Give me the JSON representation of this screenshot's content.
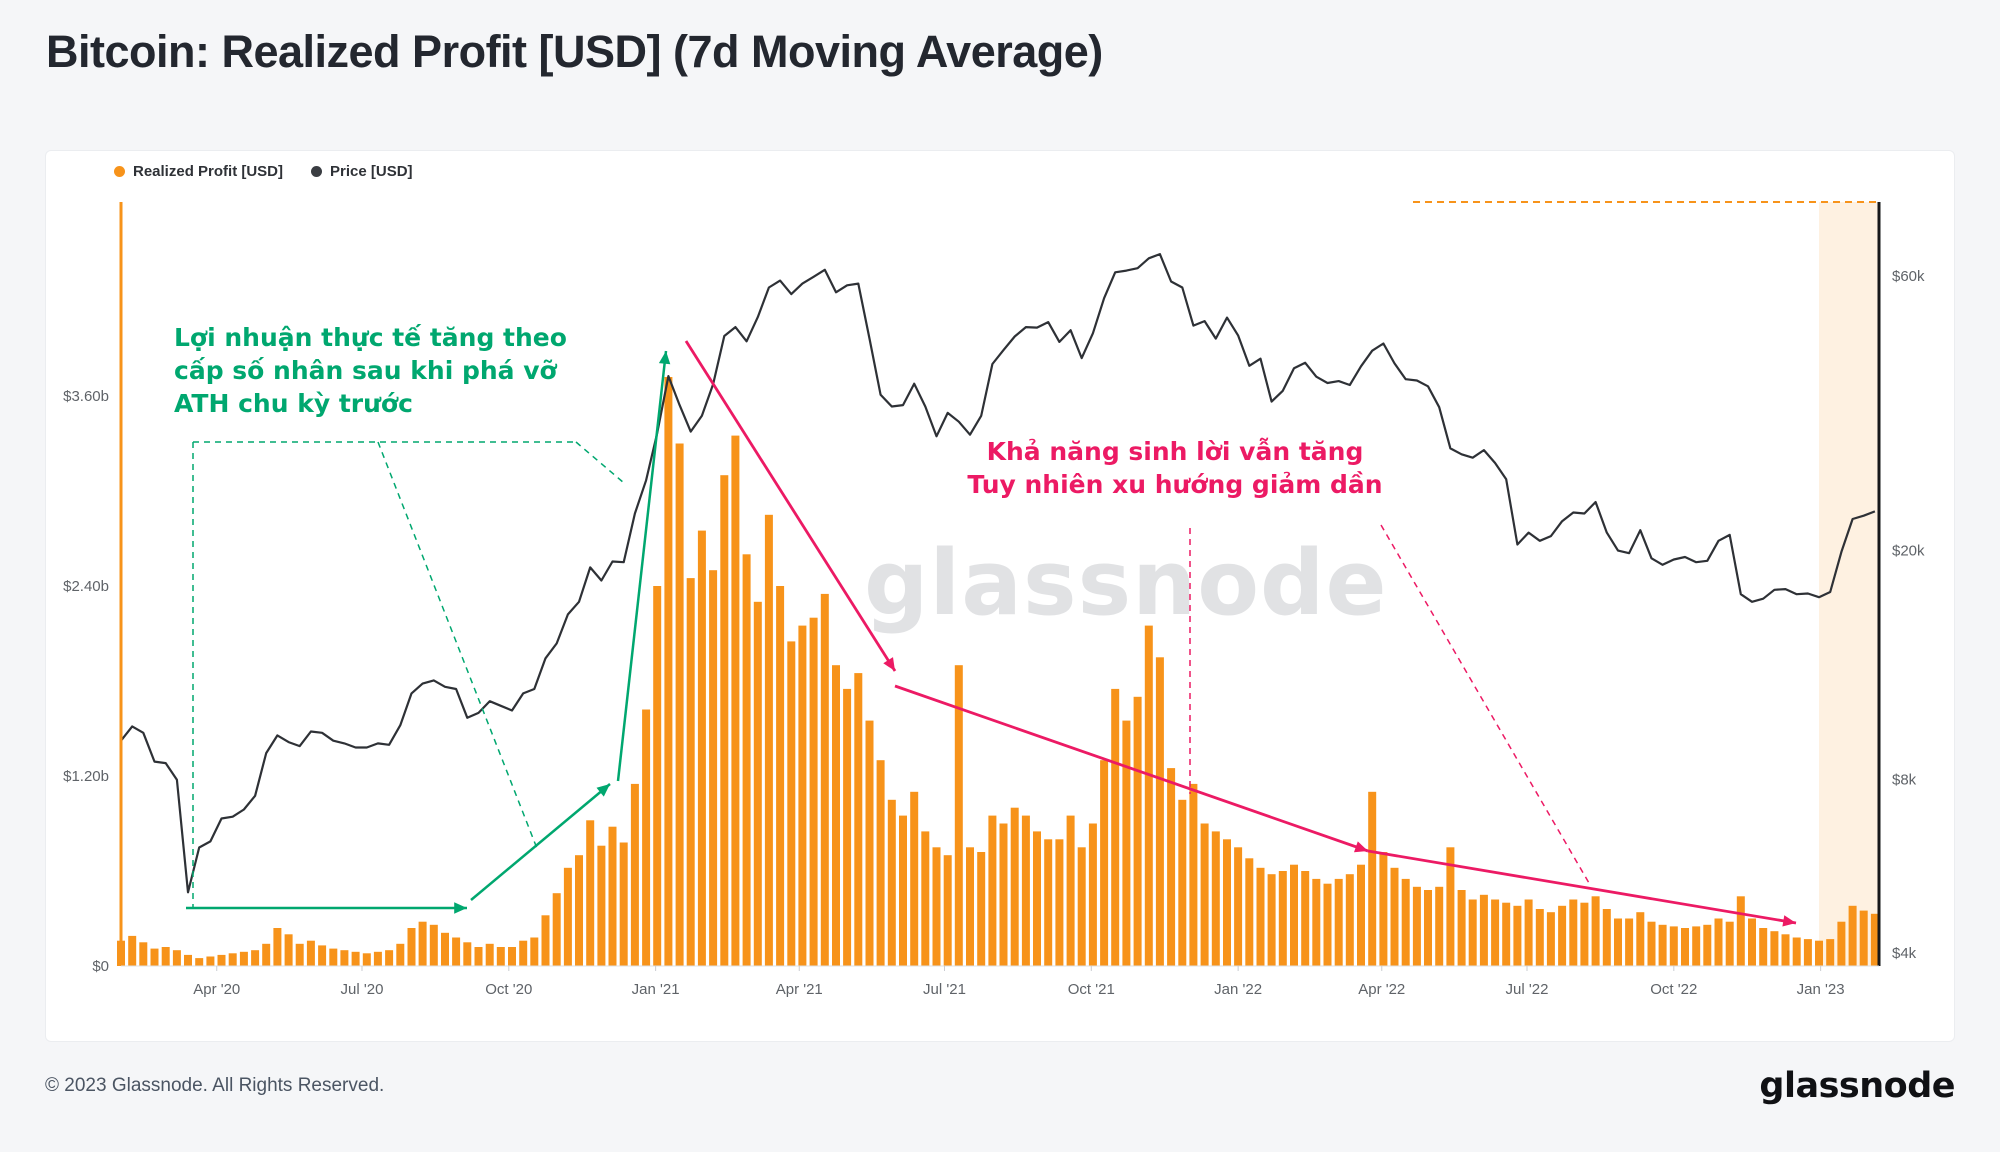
{
  "page": {
    "title": "Bitcoin: Realized Profit [USD] (7d Moving Average)",
    "footer_left": "© 2023 Glassnode. All Rights Reserved.",
    "footer_logo": "glassnode",
    "watermark": "glassnode"
  },
  "legend": [
    {
      "label": "Realized Profit [USD]",
      "color": "#f7931a"
    },
    {
      "label": "Price [USD]",
      "color": "#3a3d42"
    }
  ],
  "annotations": {
    "green": {
      "color": "#00a76f",
      "lines": [
        "Lợi nhuận thực tế tăng theo",
        "cấp số nhân sau khi phá vỡ",
        "ATH chu kỳ trước"
      ]
    },
    "pink": {
      "color": "#ec1a64",
      "lines": [
        "Khả năng sinh lời vẫn tăng",
        "Tuy nhiên xu hướng giảm dần"
      ]
    }
  },
  "chart_data": {
    "type": "bar+line",
    "title": "Bitcoin: Realized Profit [USD] (7d Moving Average)",
    "start_date": "2020-02-01",
    "interval_days": 7,
    "left_axis": {
      "label": "Realized Profit [USD]",
      "ticks": [
        "$0",
        "$1.20b",
        "$2.40b",
        "$3.60b"
      ],
      "tick_values_b": [
        0,
        1.2,
        2.4,
        3.6
      ],
      "ylim_b": [
        0,
        4.2
      ]
    },
    "right_axis": {
      "label": "Price [USD]",
      "scale": "log",
      "ticks": [
        "$4k",
        "$8k",
        "$20k",
        "$60k"
      ],
      "tick_values": [
        4000,
        8000,
        20000,
        60000
      ],
      "ylim": [
        4000,
        70000
      ]
    },
    "x_ticks": [
      "Apr '20",
      "Jul '20",
      "Oct '20",
      "Jan '21",
      "Apr '21",
      "Jul '21",
      "Oct '21",
      "Jan '22",
      "Apr '22",
      "Jul '22",
      "Oct '22",
      "Jan '23"
    ],
    "x_tick_days": [
      60,
      151,
      243,
      335,
      425,
      516,
      608,
      700,
      790,
      881,
      973,
      1065
    ],
    "grid": "off",
    "legend_position": "top-left",
    "highlight_region": {
      "note": "recent period highlight at right edge",
      "color": "#f7931a",
      "opacity": 0.13
    },
    "series": [
      {
        "name": "Realized Profit [USD]",
        "type": "bar",
        "unit": "USD billions",
        "color": "#f7931a",
        "values": [
          0.16,
          0.19,
          0.15,
          0.11,
          0.12,
          0.1,
          0.07,
          0.05,
          0.06,
          0.07,
          0.08,
          0.09,
          0.1,
          0.14,
          0.24,
          0.2,
          0.14,
          0.16,
          0.13,
          0.11,
          0.1,
          0.09,
          0.08,
          0.09,
          0.1,
          0.14,
          0.24,
          0.28,
          0.26,
          0.21,
          0.18,
          0.15,
          0.12,
          0.14,
          0.12,
          0.12,
          0.16,
          0.18,
          0.32,
          0.46,
          0.62,
          0.7,
          0.92,
          0.76,
          0.88,
          0.78,
          1.15,
          1.62,
          2.4,
          3.72,
          3.3,
          2.45,
          2.75,
          2.5,
          3.1,
          3.35,
          2.6,
          2.3,
          2.85,
          2.4,
          2.05,
          2.15,
          2.2,
          2.35,
          1.9,
          1.75,
          1.85,
          1.55,
          1.3,
          1.05,
          0.95,
          1.1,
          0.85,
          0.75,
          0.7,
          1.9,
          0.75,
          0.72,
          0.95,
          0.9,
          1.0,
          0.95,
          0.85,
          0.8,
          0.8,
          0.95,
          0.75,
          0.9,
          1.3,
          1.75,
          1.55,
          1.7,
          2.15,
          1.95,
          1.25,
          1.05,
          1.15,
          0.9,
          0.85,
          0.8,
          0.75,
          0.68,
          0.62,
          0.58,
          0.6,
          0.64,
          0.6,
          0.55,
          0.52,
          0.55,
          0.58,
          0.64,
          1.1,
          0.72,
          0.62,
          0.55,
          0.5,
          0.48,
          0.5,
          0.75,
          0.48,
          0.42,
          0.45,
          0.42,
          0.4,
          0.38,
          0.42,
          0.36,
          0.34,
          0.38,
          0.42,
          0.4,
          0.44,
          0.36,
          0.3,
          0.3,
          0.34,
          0.28,
          0.26,
          0.25,
          0.24,
          0.25,
          0.26,
          0.3,
          0.28,
          0.44,
          0.3,
          0.24,
          0.22,
          0.2,
          0.18,
          0.17,
          0.16,
          0.17,
          0.28,
          0.38,
          0.35,
          0.33
        ]
      },
      {
        "name": "Price [USD]",
        "type": "line",
        "unit": "USD",
        "color": "#2e3136",
        "values": [
          9350,
          9900,
          9650,
          8600,
          8550,
          8000,
          5100,
          6100,
          6250,
          6850,
          6900,
          7100,
          7500,
          8900,
          9550,
          9300,
          9150,
          9700,
          9650,
          9350,
          9250,
          9100,
          9100,
          9250,
          9200,
          9950,
          11300,
          11750,
          11900,
          11600,
          11500,
          10250,
          10450,
          10950,
          10750,
          10550,
          11300,
          11500,
          13000,
          13800,
          15500,
          16300,
          18700,
          17750,
          19150,
          19100,
          23200,
          26500,
          32000,
          40200,
          35800,
          32200,
          34300,
          38900,
          47200,
          48900,
          46200,
          50900,
          57300,
          58900,
          55800,
          58200,
          59800,
          61500,
          56200,
          57800,
          58200,
          46700,
          37300,
          35600,
          35800,
          39000,
          35600,
          31600,
          34700,
          33500,
          31800,
          34300,
          42200,
          44600,
          47100,
          48900,
          48800,
          49900,
          46100,
          48300,
          43200,
          47700,
          54900,
          60900,
          61300,
          61900,
          64400,
          65500,
          58700,
          57300,
          49200,
          50100,
          46700,
          50800,
          47300,
          41900,
          43100,
          36300,
          37900,
          41500,
          42400,
          40100,
          39100,
          39400,
          38800,
          41800,
          44500,
          45800,
          42300,
          39700,
          39500,
          38600,
          35500,
          30100,
          29400,
          29000,
          29900,
          28400,
          26600,
          20500,
          21500,
          20800,
          21200,
          22500,
          23300,
          23200,
          24300,
          21500,
          20000,
          19800,
          21700,
          19400,
          18900,
          19300,
          19500,
          19100,
          19200,
          20800,
          21300,
          16800,
          16300,
          16500,
          17100,
          17150,
          16800,
          16850,
          16600,
          16950,
          19900,
          22700,
          23000,
          23400
        ]
      }
    ]
  }
}
